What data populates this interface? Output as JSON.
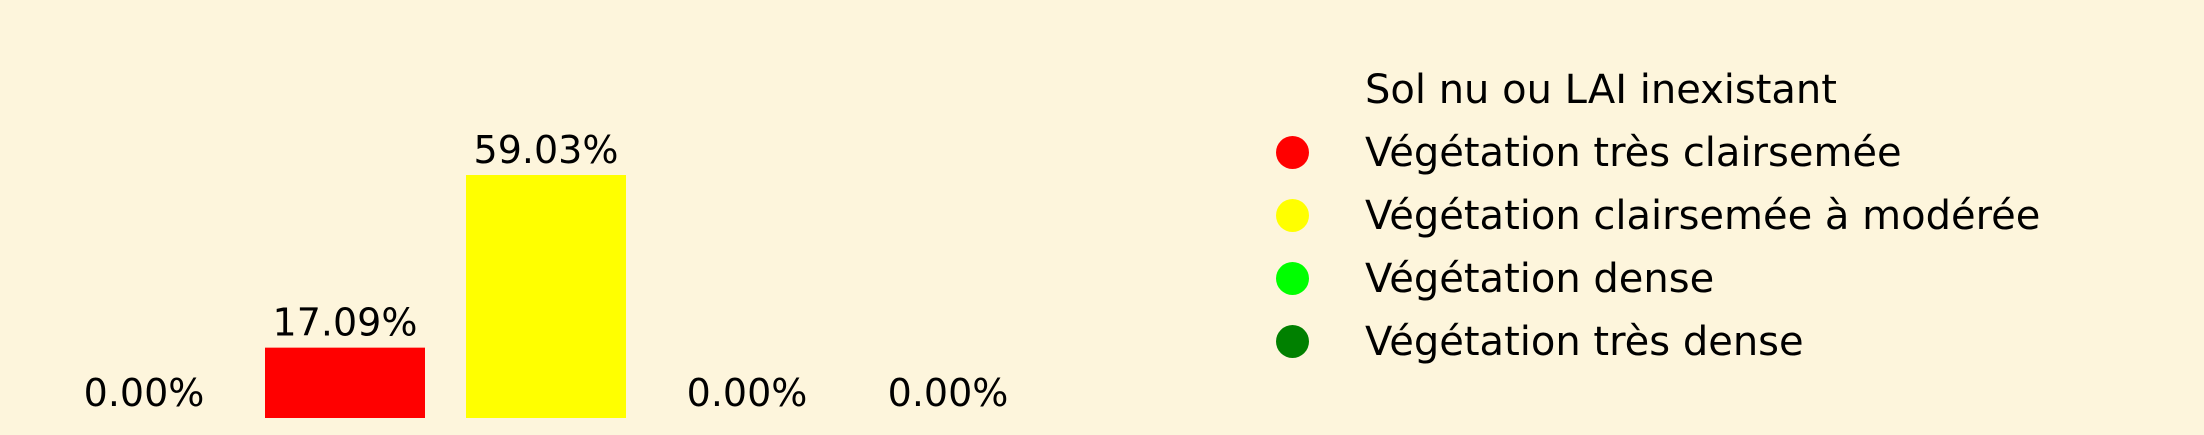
{
  "chart_data": {
    "type": "bar",
    "categories": [
      "Sol nu ou LAI inexistant",
      "Végétation très clairsemée",
      "Végétation clairsemée à modérée",
      "Végétation dense",
      "Végétation très dense"
    ],
    "values": [
      0.0,
      17.09,
      59.03,
      0.0,
      0.0
    ],
    "data_labels": [
      "0.00%",
      "17.09%",
      "59.03%",
      "0.00%",
      "0.00%"
    ],
    "colors": [
      "#fdf5dc",
      "#ff0000",
      "#ffff00",
      "#00ff00",
      "#008000"
    ],
    "ylim": [
      0,
      62
    ],
    "grid": false,
    "legend_position": "right"
  },
  "background_color": "#fdf5dc"
}
